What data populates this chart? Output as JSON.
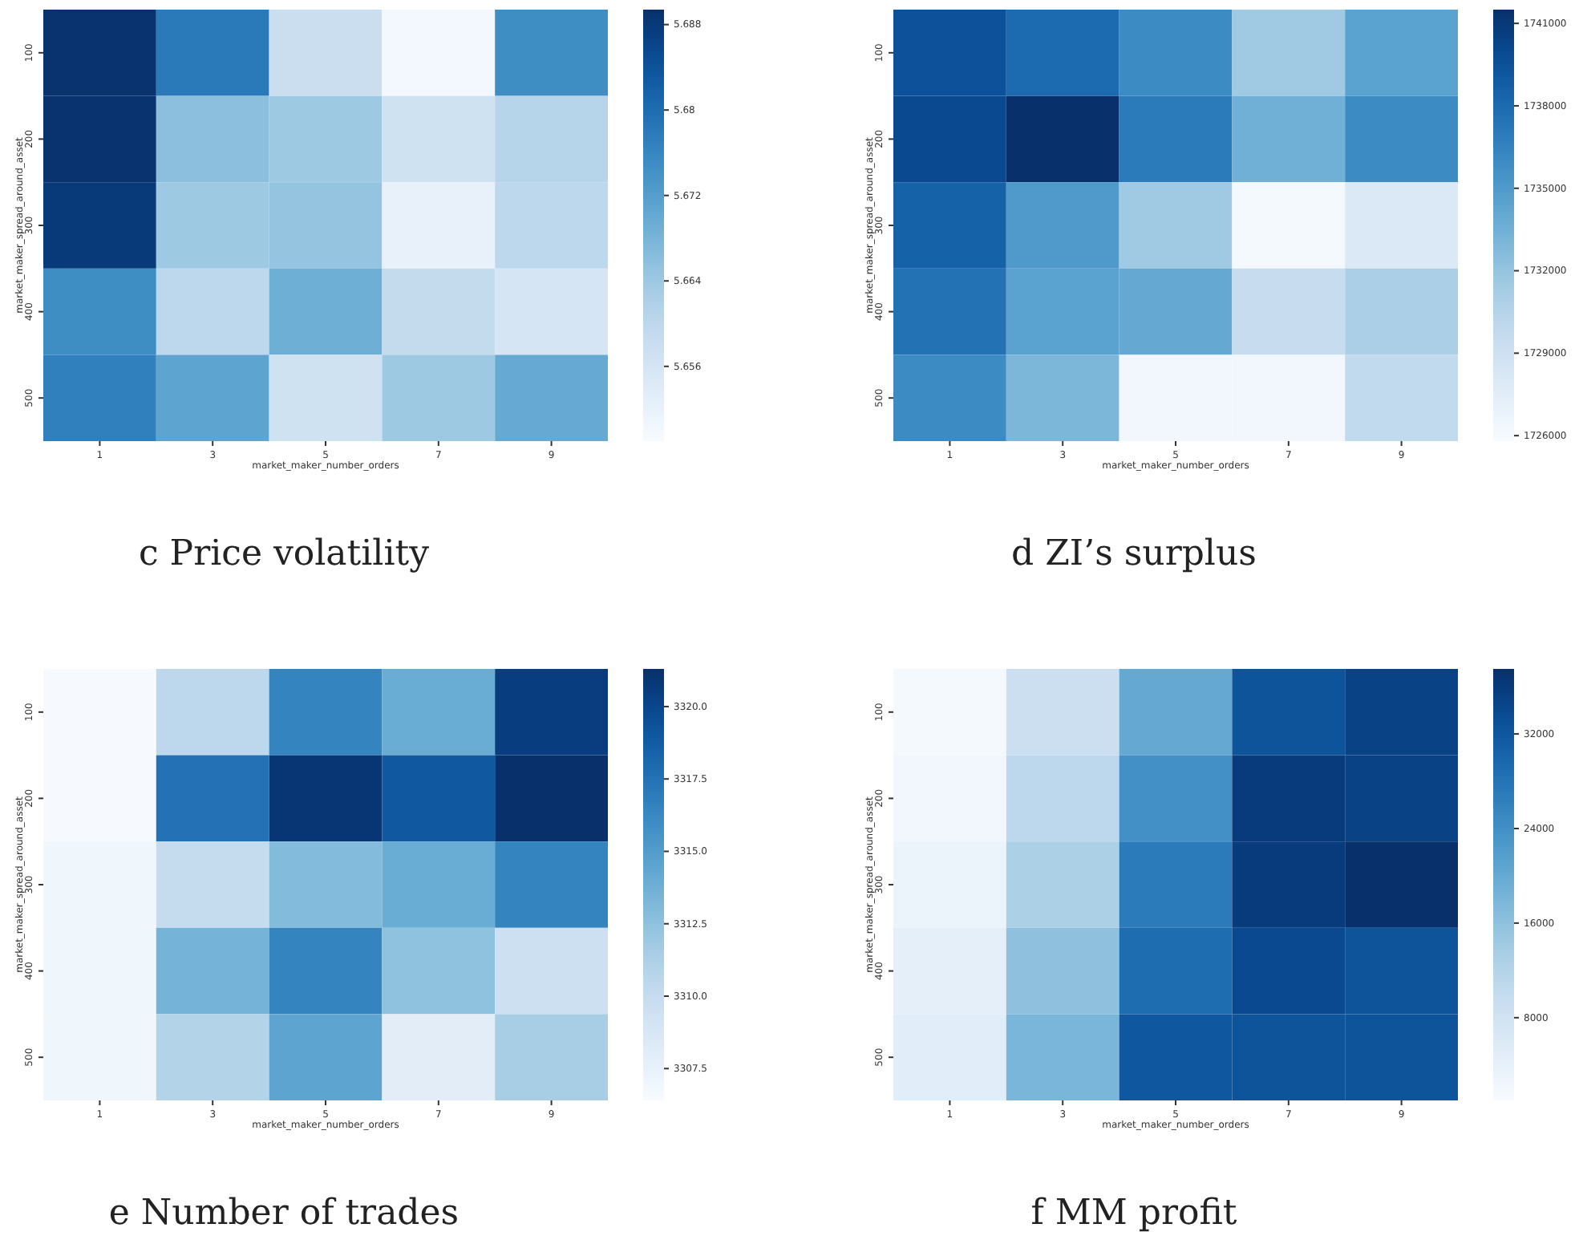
{
  "chart_data": [
    {
      "type": "heatmap",
      "title": "c Price volatility",
      "xlabel": "market_maker_number_orders",
      "ylabel": "market_maker_spread_around_asset",
      "categories": [
        "1",
        "3",
        "5",
        "7",
        "9"
      ],
      "y_categories": [
        "100",
        "200",
        "300",
        "400",
        "500"
      ],
      "cells": [
        [
          5.689,
          5.678,
          5.658,
          5.65,
          5.675
        ],
        [
          5.689,
          5.666,
          5.664,
          5.657,
          5.661
        ],
        [
          5.688,
          5.664,
          5.665,
          5.652,
          5.66
        ],
        [
          5.675,
          5.66,
          5.669,
          5.659,
          5.656
        ],
        [
          5.677,
          5.671,
          5.657,
          5.664,
          5.67
        ]
      ],
      "clim": [
        5.649,
        5.6894
      ],
      "cticks": [
        5.656,
        5.664,
        5.672,
        5.68,
        5.688
      ]
    },
    {
      "type": "heatmap",
      "title": "d ZI’s surplus",
      "xlabel": "market_maker_number_orders",
      "ylabel": "market_maker_spread_around_asset",
      "categories": [
        "1",
        "3",
        "5",
        "7",
        "9"
      ],
      "y_categories": [
        "100",
        "200",
        "300",
        "400",
        "500"
      ],
      "cells": [
        [
          1739500,
          1738000,
          1736000,
          1731500,
          1734500
        ],
        [
          1740000,
          1741500,
          1737000,
          1733500,
          1736000
        ],
        [
          1738500,
          1735000,
          1731500,
          1726000,
          1728000
        ],
        [
          1737500,
          1734500,
          1734000,
          1729500,
          1731000
        ],
        [
          1736000,
          1733000,
          1726300,
          1726300,
          1729800
        ]
      ],
      "clim": [
        1725800,
        1741500
      ],
      "cticks": [
        1726000,
        1729000,
        1732000,
        1735000,
        1738000,
        1741000
      ]
    },
    {
      "type": "heatmap",
      "title": "e Number of trades",
      "xlabel": "market_maker_number_orders",
      "ylabel": "market_maker_spread_around_asset",
      "categories": [
        "1",
        "3",
        "5",
        "7",
        "9"
      ],
      "y_categories": [
        "100",
        "200",
        "300",
        "400",
        "500"
      ],
      "cells": [
        [
          3306.5,
          3310.5,
          3316.5,
          3314,
          3320.5
        ],
        [
          3306.5,
          3317.5,
          3321,
          3319,
          3321.3
        ],
        [
          3307,
          3310,
          3313,
          3314,
          3316.5
        ],
        [
          3307,
          3313.5,
          3316.5,
          3312.5,
          3309.5
        ],
        [
          3307,
          3311,
          3314.5,
          3308,
          3311.5
        ]
      ],
      "clim": [
        3306.4,
        3321.3
      ],
      "cticks": [
        {
          "value": 3307.5,
          "label": "3307.5"
        },
        {
          "value": 3310,
          "label": "3310.0"
        },
        {
          "value": 3312.5,
          "label": "3312.5"
        },
        {
          "value": 3315,
          "label": "3315.0"
        },
        {
          "value": 3317.5,
          "label": "3317.5"
        },
        {
          "value": 3320,
          "label": "3320.0"
        }
      ]
    },
    {
      "type": "heatmap",
      "title": "f MM profit",
      "xlabel": "market_maker_number_orders",
      "ylabel": "market_maker_spread_around_asset",
      "categories": [
        "1",
        "3",
        "5",
        "7",
        "9"
      ],
      "y_categories": [
        "100",
        "200",
        "300",
        "400",
        "500"
      ],
      "cells": [
        [
          1500,
          9000,
          20000,
          32500,
          35000
        ],
        [
          2000,
          11000,
          24000,
          36000,
          35000
        ],
        [
          3000,
          13000,
          27000,
          36000,
          37500
        ],
        [
          4500,
          16000,
          29000,
          34000,
          32500
        ],
        [
          5000,
          18000,
          32000,
          32500,
          32500
        ]
      ],
      "clim": [
        1000,
        37500
      ],
      "cticks": [
        8000,
        16000,
        24000,
        32000
      ]
    }
  ]
}
